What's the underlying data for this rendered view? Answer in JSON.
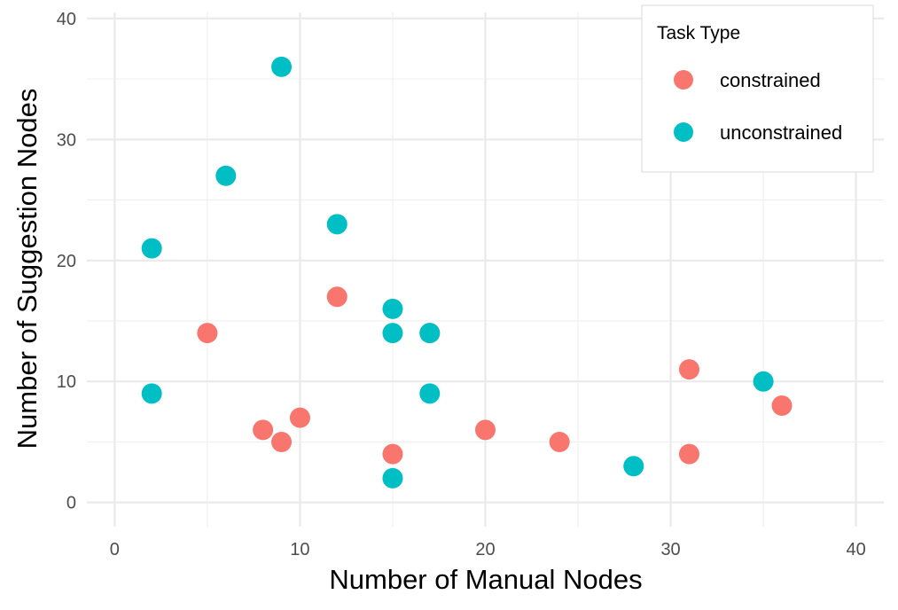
{
  "chart_data": {
    "type": "scatter",
    "xlabel": "Number of Manual Nodes",
    "ylabel": "Number of Suggestion Nodes",
    "xlim": [
      -1.5,
      41.5
    ],
    "ylim": [
      -2,
      40.5
    ],
    "x_ticks": [
      0,
      10,
      20,
      30,
      40
    ],
    "y_ticks": [
      0,
      10,
      20,
      30,
      40
    ],
    "x_tick_labels": [
      "0",
      "10",
      "20",
      "30",
      "40"
    ],
    "y_tick_labels": [
      "0",
      "10",
      "20",
      "30",
      "40"
    ],
    "grid": true,
    "legend": {
      "title": "Task Type",
      "position": "top-right"
    },
    "series": [
      {
        "name": "constrained",
        "color": "#F8766D",
        "points": [
          {
            "x": 5,
            "y": 14
          },
          {
            "x": 8,
            "y": 6
          },
          {
            "x": 9,
            "y": 5
          },
          {
            "x": 10,
            "y": 7
          },
          {
            "x": 12,
            "y": 17
          },
          {
            "x": 15,
            "y": 4
          },
          {
            "x": 17,
            "y": 14
          },
          {
            "x": 20,
            "y": 6
          },
          {
            "x": 24,
            "y": 5
          },
          {
            "x": 31,
            "y": 11
          },
          {
            "x": 31,
            "y": 4
          },
          {
            "x": 36,
            "y": 8
          }
        ]
      },
      {
        "name": "unconstrained",
        "color": "#00BFC4",
        "points": [
          {
            "x": 2,
            "y": 21
          },
          {
            "x": 2,
            "y": 9
          },
          {
            "x": 6,
            "y": 27
          },
          {
            "x": 9,
            "y": 36
          },
          {
            "x": 12,
            "y": 23
          },
          {
            "x": 15,
            "y": 16
          },
          {
            "x": 15,
            "y": 14
          },
          {
            "x": 15,
            "y": 2
          },
          {
            "x": 17,
            "y": 14
          },
          {
            "x": 17,
            "y": 9
          },
          {
            "x": 28,
            "y": 3
          },
          {
            "x": 35,
            "y": 10
          }
        ]
      }
    ]
  }
}
